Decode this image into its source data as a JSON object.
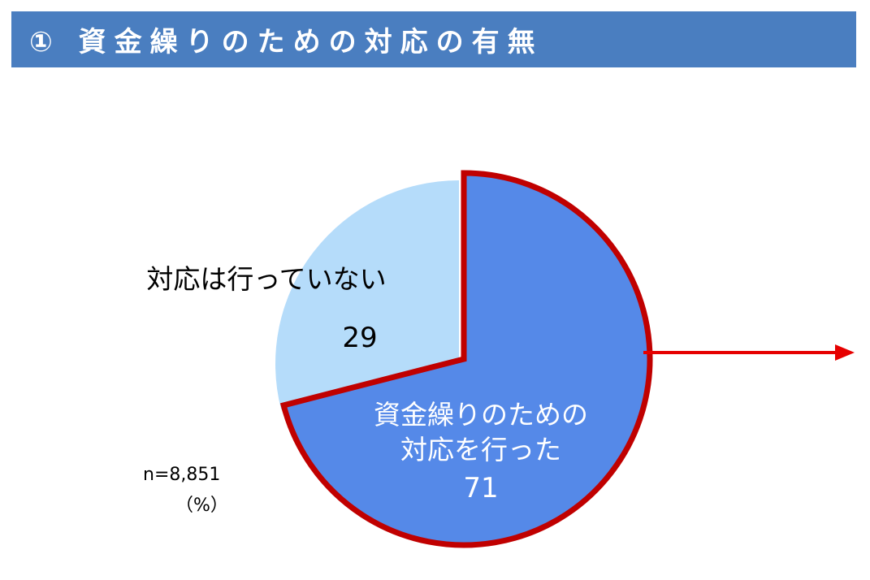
{
  "title": "① 資金繰りのための対応の有無",
  "chart_data": {
    "type": "pie",
    "slices": [
      {
        "label_lines": [
          "資金繰りのための",
          "対応を行った"
        ],
        "value": 71,
        "color": "#5589e8"
      },
      {
        "label_lines": [
          "対応は行っていない"
        ],
        "value": 29,
        "color": "#b5dcfa"
      }
    ],
    "highlight_slice": 0,
    "highlight_color": "#c00000",
    "arrow_color": "#e60000",
    "n_label": "n=8,851",
    "unit_label": "（%）"
  }
}
